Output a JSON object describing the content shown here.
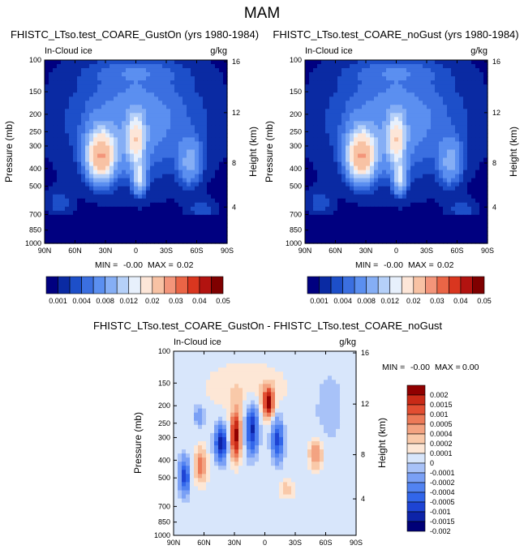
{
  "page": {
    "title": "MAM"
  },
  "colors": {
    "abs_palette": [
      "#000080",
      "#0a2aa3",
      "#1d4fc9",
      "#3b6fe0",
      "#5b8ff0",
      "#85aef5",
      "#b5d0f9",
      "#e7f0fc",
      "#fde6d8",
      "#f8c2a4",
      "#f3957a",
      "#ea6546",
      "#d9361f",
      "#b21310",
      "#7f0000"
    ],
    "diff_palette": [
      "#000077",
      "#0d23a8",
      "#1e44d4",
      "#3266ea",
      "#5283f1",
      "#7aa0f5",
      "#a8c2f8",
      "#d8e6fb",
      "#fde7d6",
      "#f9c9a9",
      "#f3a381",
      "#ec7a58",
      "#e24e32",
      "#c92a17",
      "#900000"
    ]
  },
  "chart_data": [
    {
      "type": "heatmap",
      "title": "FHISTC_LTso.test_COARE_GustOn (yrs 1980-1984)",
      "left_label": "In-Cloud ice",
      "right_label": "g/kg",
      "ylabel": "Pressure (mb)",
      "y2label": "Height (km)",
      "x_ticks": [
        "90N",
        "60N",
        "30N",
        "0",
        "30S",
        "60S",
        "90S"
      ],
      "y_ticks": [
        "100",
        "150",
        "200",
        "250",
        "300",
        "400",
        "500",
        "700",
        "850",
        "1000"
      ],
      "y2_ticks": [
        "16",
        "12",
        "8",
        "4"
      ],
      "stats": {
        "min_label": "MIN =",
        "min": "-0.00",
        "max_label": "MAX =",
        "max": "0.02"
      },
      "colorbar": {
        "labels": [
          "0.001",
          "0.004",
          "0.008",
          "0.012",
          "0.02",
          "0.03",
          "0.04",
          "0.05"
        ]
      },
      "field": "abs"
    },
    {
      "type": "heatmap",
      "title": "FHISTC_LTso.test_COARE_noGust (yrs 1980-1984)",
      "left_label": "In-Cloud ice",
      "right_label": "g/kg",
      "ylabel": "Pressure (mb)",
      "y2label": "Height (km)",
      "x_ticks": [
        "90N",
        "60N",
        "30N",
        "0",
        "30S",
        "60S",
        "90S"
      ],
      "y_ticks": [
        "100",
        "150",
        "200",
        "250",
        "300",
        "400",
        "500",
        "700",
        "850",
        "1000"
      ],
      "y2_ticks": [
        "16",
        "12",
        "8",
        "4"
      ],
      "stats": {
        "min_label": "MIN =",
        "min": "-0.00",
        "max_label": "MAX =",
        "max": "0.02"
      },
      "colorbar": {
        "labels": [
          "0.001",
          "0.004",
          "0.008",
          "0.012",
          "0.02",
          "0.03",
          "0.04",
          "0.05"
        ]
      },
      "field": "abs"
    },
    {
      "type": "heatmap",
      "title": "FHISTC_LTso.test_COARE_GustOn - FHISTC_LTso.test_COARE_noGust",
      "left_label": "In-Cloud ice",
      "right_label": "g/kg",
      "ylabel": "Pressure (mb)",
      "y2label": "Height (km)",
      "x_ticks": [
        "90N",
        "60N",
        "30N",
        "0",
        "30S",
        "60S",
        "90S"
      ],
      "y_ticks": [
        "100",
        "150",
        "200",
        "250",
        "300",
        "400",
        "500",
        "700",
        "850",
        "1000"
      ],
      "y2_ticks": [
        "16",
        "12",
        "8",
        "4"
      ],
      "stats": {
        "min_label": "MIN =",
        "min": "-0.00",
        "max_label": "MAX =",
        "max": "0.00"
      },
      "colorbar": {
        "labels": [
          "0.002",
          "0.0015",
          "0.001",
          "0.0005",
          "0.0004",
          "0.0002",
          "0.0001",
          "0",
          "-0.0001",
          "-0.0002",
          "-0.0004",
          "-0.0005",
          "-0.001",
          "-0.0015",
          "-0.002"
        ]
      },
      "field": "diff"
    }
  ]
}
